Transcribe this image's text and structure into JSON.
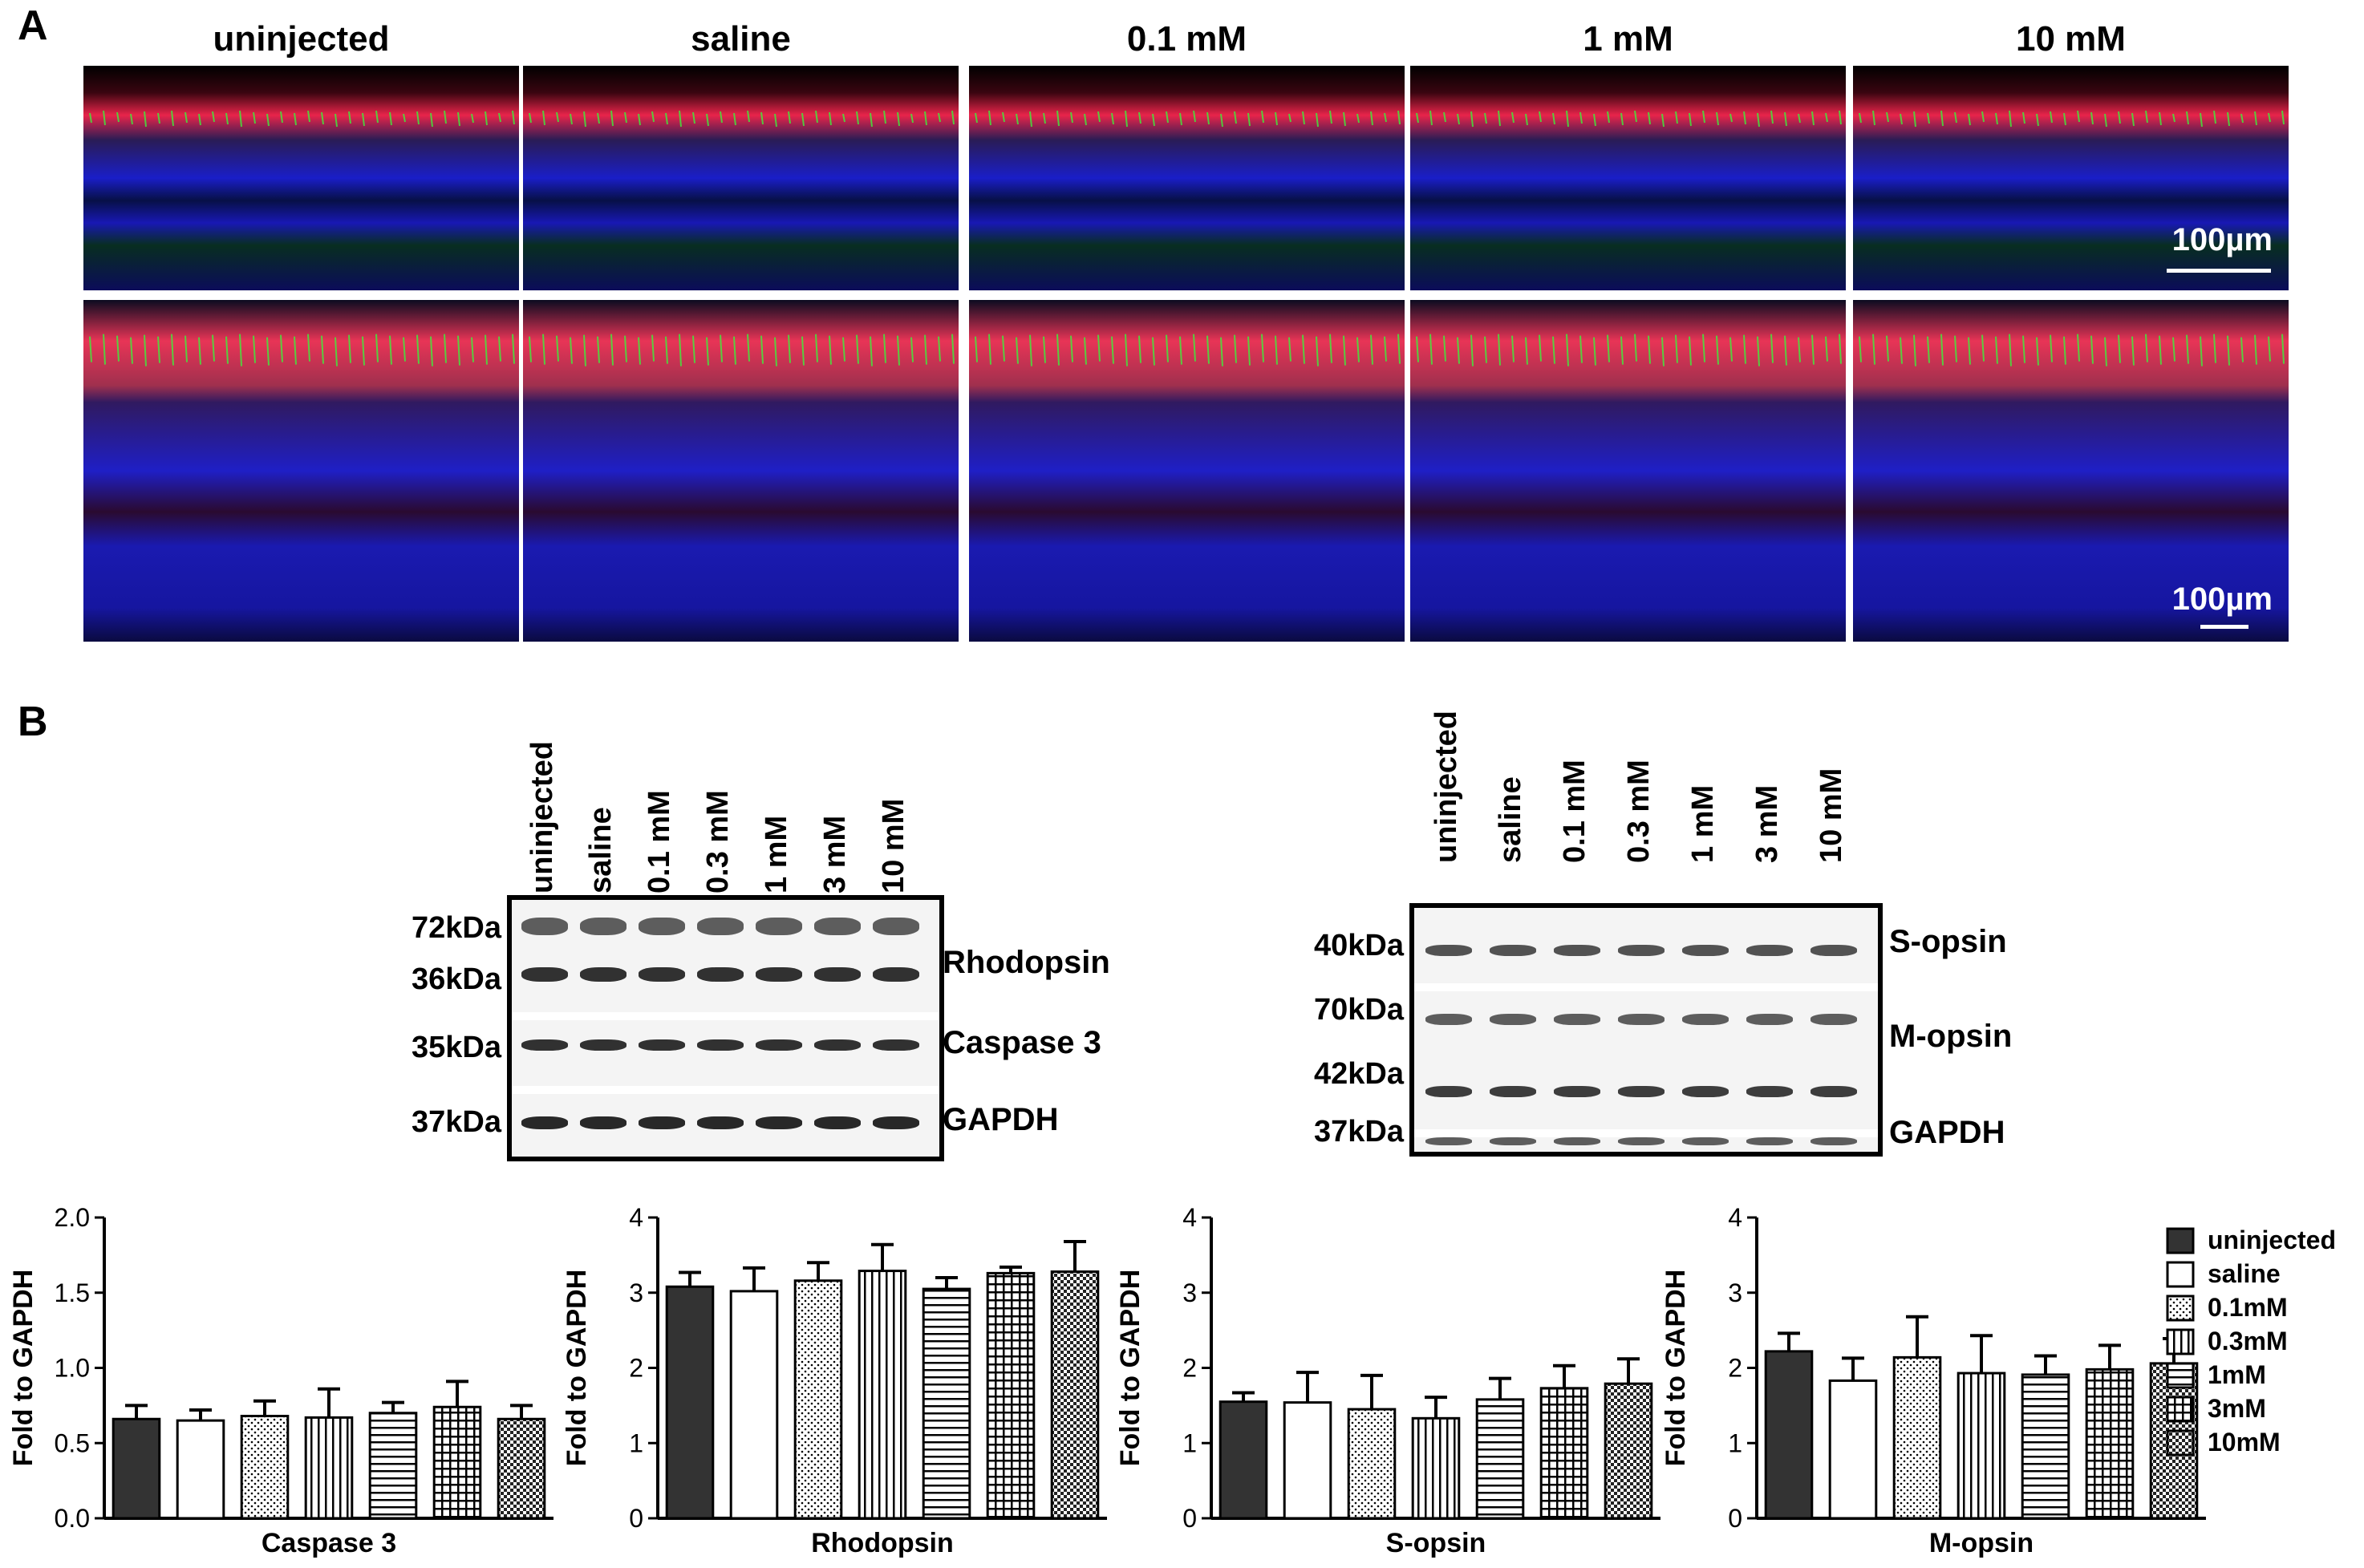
{
  "panel_a": {
    "letter": "A",
    "columns": [
      "uninjected",
      "saline",
      "0.1 mM",
      "1 mM",
      "10 mM"
    ],
    "scale_bar": "100µm"
  },
  "panel_b": {
    "letter": "B",
    "blot_left": {
      "lanes": [
        "uninjected",
        "saline",
        "0.1 mM",
        "0.3 mM",
        "1 mM",
        "3 mM",
        "10 mM"
      ],
      "kda": [
        "72kDa",
        "36kDa",
        "35kDa",
        "37kDa"
      ],
      "proteins": [
        "Rhodopsin",
        "Caspase 3",
        "GAPDH"
      ]
    },
    "blot_right": {
      "lanes": [
        "uninjected",
        "saline",
        "0.1 mM",
        "0.3 mM",
        "1 mM",
        "3 mM",
        "10 mM"
      ],
      "kda": [
        "40kDa",
        "70kDa",
        "42kDa",
        "37kDa"
      ],
      "proteins": [
        "S-opsin",
        "M-opsin",
        "GAPDH"
      ]
    }
  },
  "legend": {
    "items": [
      "uninjected",
      "saline",
      "0.1mM",
      "0.3mM",
      "1mM",
      "3mM",
      "10mM"
    ],
    "patterns": [
      "solid",
      "white",
      "dots",
      "vlines",
      "hlines",
      "grid",
      "checker"
    ]
  },
  "chart_data": [
    {
      "type": "bar",
      "xlabel": "Caspase 3",
      "ylabel": "Fold to GAPDH",
      "ylim": [
        0,
        2.0
      ],
      "yticks": [
        "0.0",
        "0.5",
        "1.0",
        "1.5",
        "2.0"
      ],
      "categories": [
        "uninjected",
        "saline",
        "0.1mM",
        "0.3mM",
        "1mM",
        "3mM",
        "10mM"
      ],
      "values": [
        0.66,
        0.65,
        0.68,
        0.67,
        0.7,
        0.74,
        0.66
      ],
      "errors": [
        0.09,
        0.07,
        0.1,
        0.19,
        0.07,
        0.17,
        0.09
      ]
    },
    {
      "type": "bar",
      "xlabel": "Rhodopsin",
      "ylabel": "Fold to GAPDH",
      "ylim": [
        0,
        4
      ],
      "yticks": [
        "0",
        "1",
        "2",
        "3",
        "4"
      ],
      "categories": [
        "uninjected",
        "saline",
        "0.1mM",
        "0.3mM",
        "1mM",
        "3mM",
        "10mM"
      ],
      "values": [
        3.08,
        3.02,
        3.16,
        3.29,
        3.05,
        3.26,
        3.28
      ],
      "errors": [
        0.19,
        0.31,
        0.24,
        0.35,
        0.15,
        0.08,
        0.4
      ]
    },
    {
      "type": "bar",
      "xlabel": "S-opsin",
      "ylabel": "Fold to GAPDH",
      "ylim": [
        0,
        4
      ],
      "yticks": [
        "0",
        "1",
        "2",
        "3",
        "4"
      ],
      "categories": [
        "uninjected",
        "saline",
        "0.1mM",
        "0.3mM",
        "1mM",
        "3mM",
        "10mM"
      ],
      "values": [
        1.55,
        1.54,
        1.45,
        1.33,
        1.58,
        1.73,
        1.79
      ],
      "errors": [
        0.12,
        0.4,
        0.45,
        0.28,
        0.28,
        0.3,
        0.33
      ]
    },
    {
      "type": "bar",
      "xlabel": "M-opsin",
      "ylabel": "Fold to GAPDH",
      "ylim": [
        0,
        4
      ],
      "yticks": [
        "0",
        "1",
        "2",
        "3",
        "4"
      ],
      "categories": [
        "uninjected",
        "saline",
        "0.1mM",
        "0.3mM",
        "1mM",
        "3mM",
        "10mM"
      ],
      "values": [
        2.22,
        1.83,
        2.14,
        1.93,
        1.91,
        1.98,
        2.06
      ],
      "errors": [
        0.24,
        0.3,
        0.54,
        0.5,
        0.25,
        0.32,
        0.33
      ]
    }
  ]
}
